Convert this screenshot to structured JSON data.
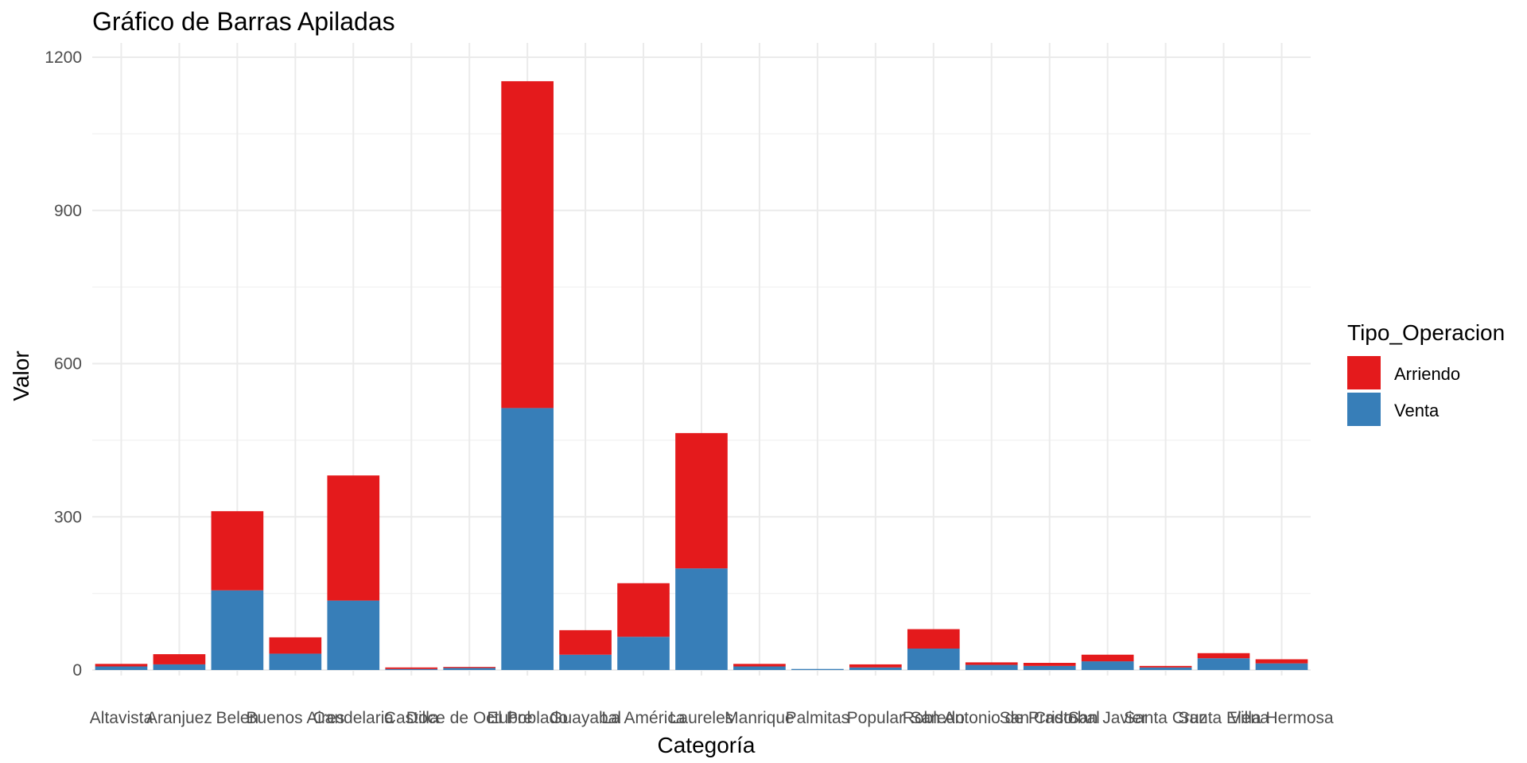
{
  "chart_data": {
    "type": "bar",
    "stacked": true,
    "title": "Gráfico de Barras Apiladas",
    "xlabel": "Categoría",
    "ylabel": "Valor",
    "ylim": [
      0,
      1200
    ],
    "yticks": [
      0,
      300,
      600,
      900,
      1200
    ],
    "grid": true,
    "legend": {
      "title": "Tipo_Operacion",
      "position": "right"
    },
    "categories": [
      "Altavista",
      "Aranjuez",
      "Belen",
      "Buenos Aires",
      "Candelaria",
      "Castilla",
      "Doce de Octubre",
      "El Poblado",
      "Guayabal",
      "La América",
      "Laureles",
      "Manrique",
      "Palmitas",
      "Popular",
      "Robledo",
      "San Antonio de Prado",
      "San Cristobal",
      "San Javier",
      "Santa Cruz",
      "Santa Elena",
      "Villa Hermosa"
    ],
    "series": [
      {
        "name": "Arriendo",
        "color": "#E41A1C",
        "values": [
          5,
          20,
          155,
          32,
          245,
          3,
          2,
          640,
          48,
          105,
          265,
          5,
          0,
          6,
          38,
          5,
          6,
          13,
          3,
          10,
          8
        ]
      },
      {
        "name": "Venta",
        "color": "#377EB8",
        "values": [
          7,
          11,
          156,
          32,
          136,
          2,
          4,
          513,
          30,
          65,
          199,
          7,
          2,
          5,
          42,
          10,
          8,
          17,
          5,
          23,
          13
        ]
      }
    ]
  }
}
